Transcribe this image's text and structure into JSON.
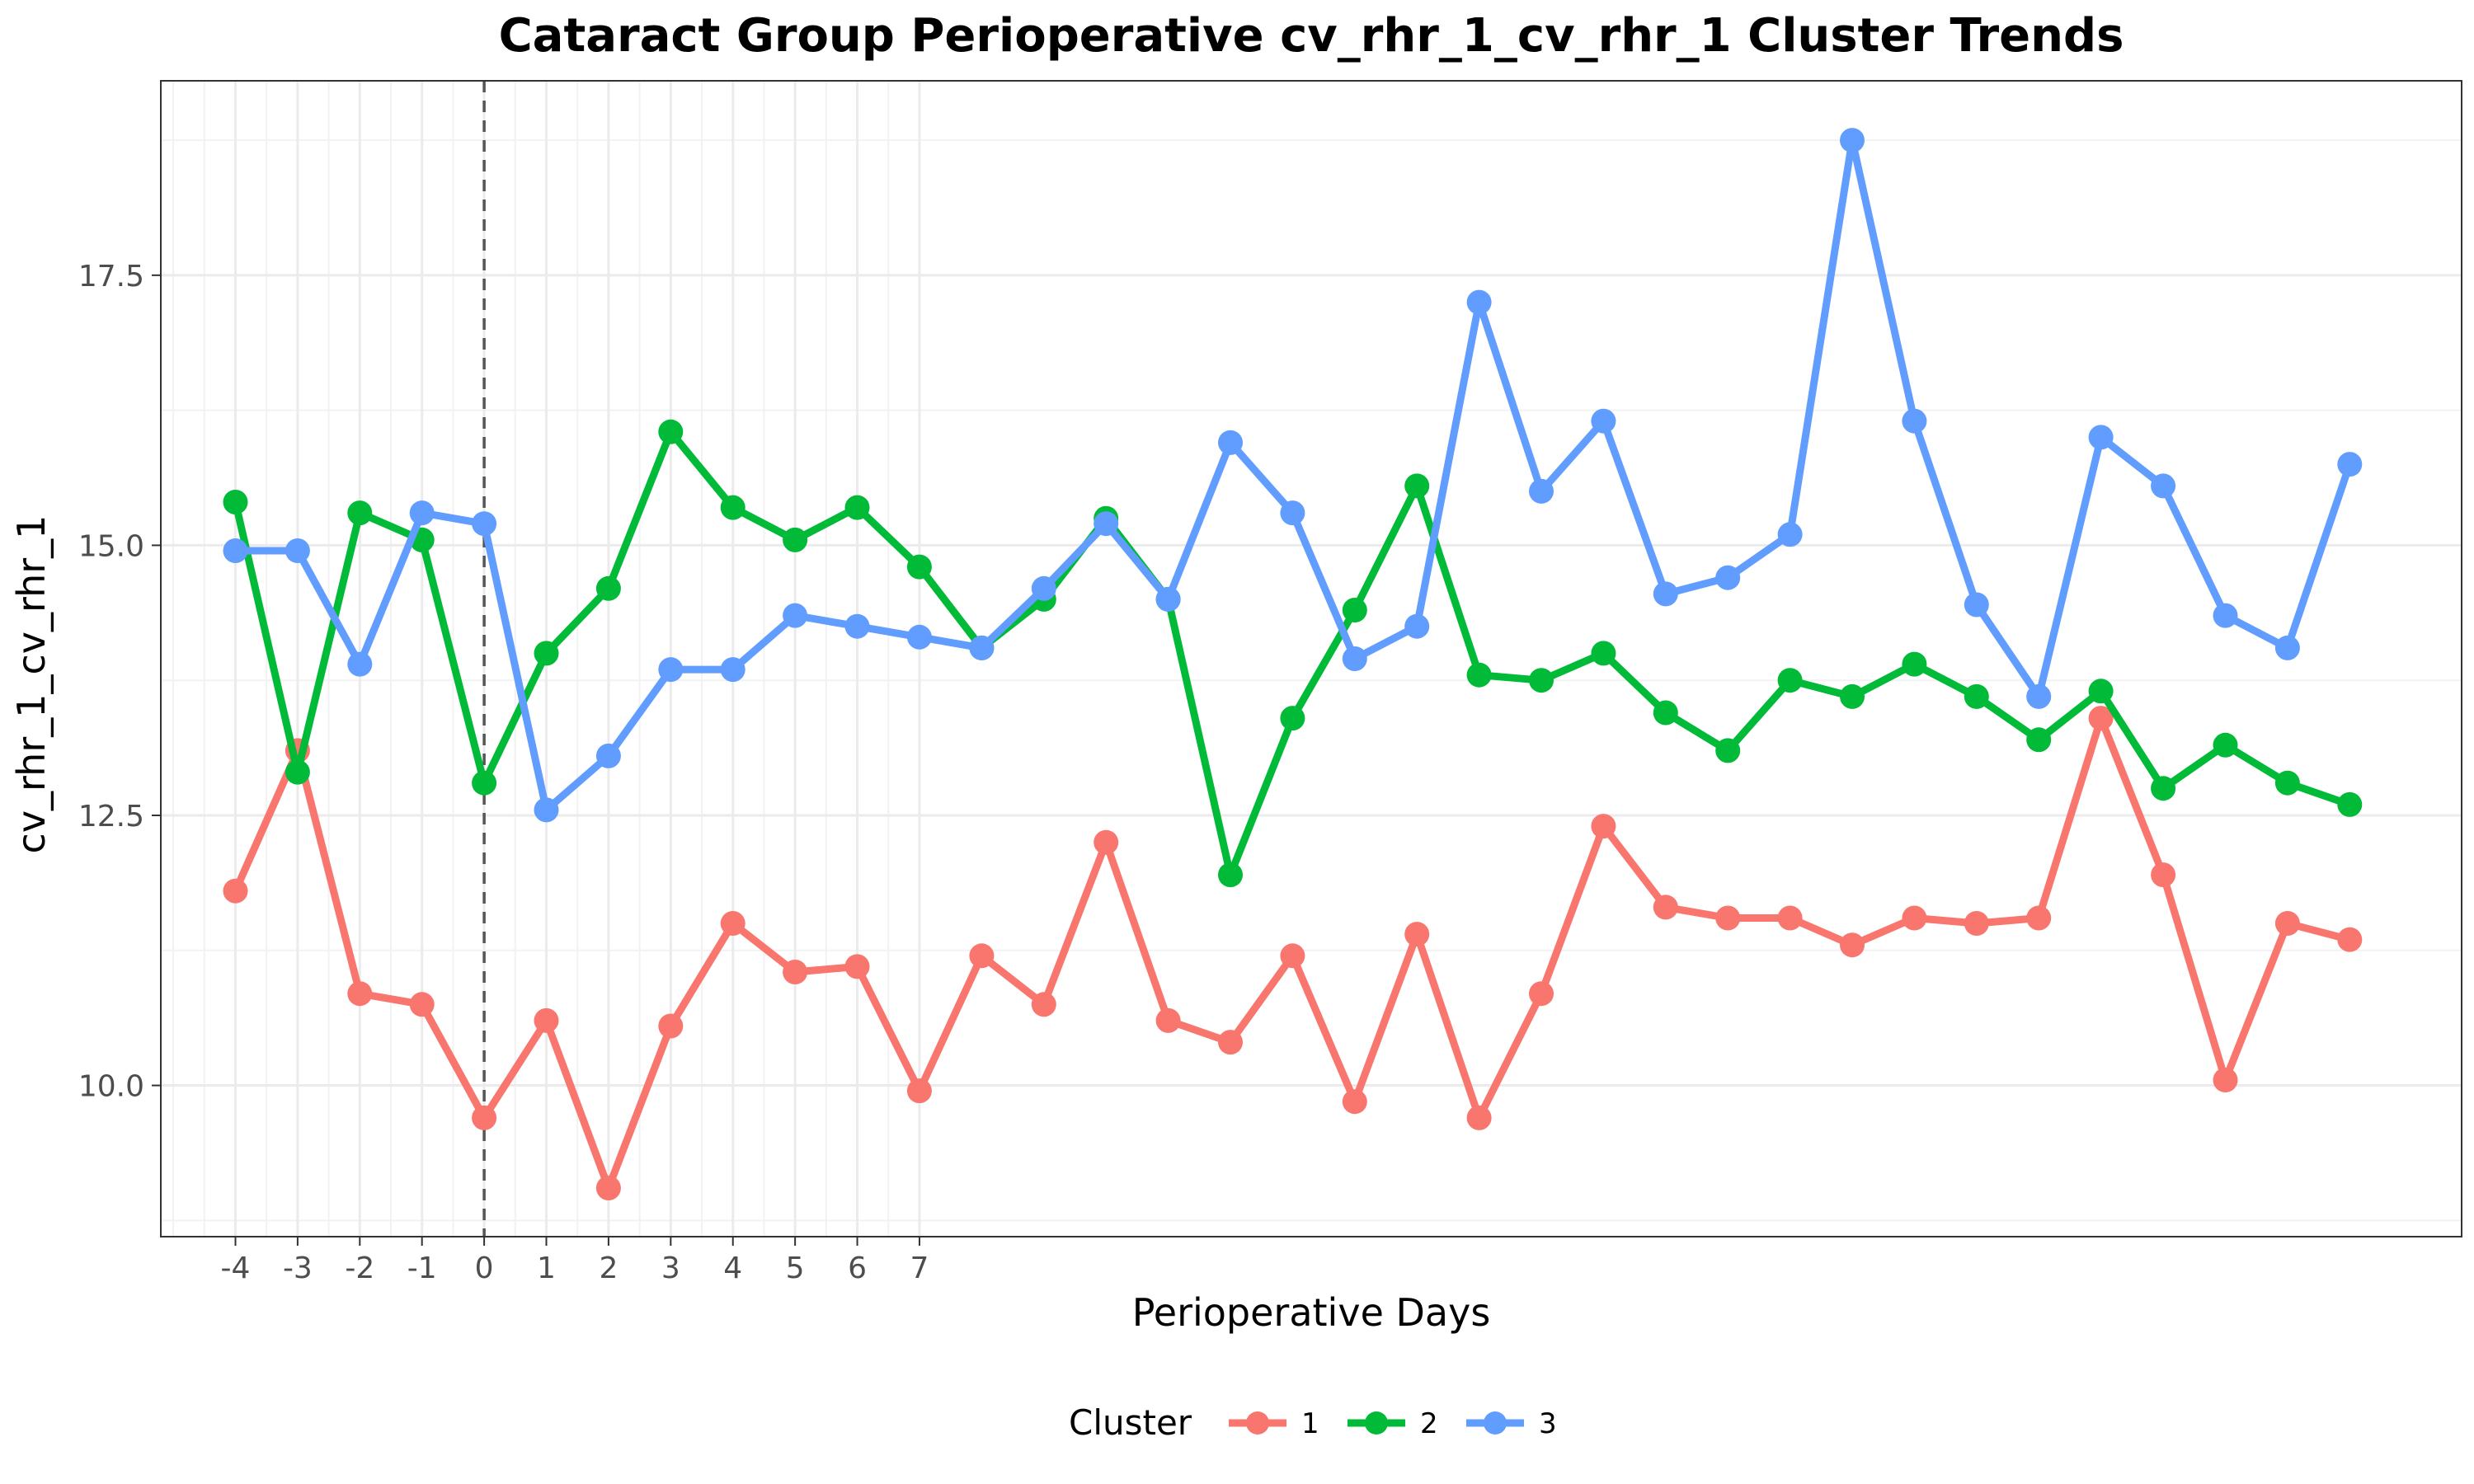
{
  "chart_data": {
    "type": "line",
    "title": "Cataract Group Perioperative cv_rhr_1_cv_rhr_1 Cluster Trends",
    "xlabel": "Perioperative Days",
    "ylabel": "cv_rhr_1_cv_rhr_1",
    "xlim": [
      -5.2,
      31.8
    ],
    "ylim": [
      8.6,
      19.3
    ],
    "x_tick_values": [
      -4,
      -3,
      -2,
      -1,
      0,
      1,
      2,
      3,
      4,
      5,
      6,
      7
    ],
    "x_tick_labels": [
      "-4",
      "-3",
      "-2",
      "-1",
      "0",
      "1",
      "2",
      "3",
      "4",
      "5",
      "6",
      "7"
    ],
    "y_tick_values": [
      10.0,
      12.5,
      15.0,
      17.5
    ],
    "y_tick_labels": [
      "10.0",
      "12.5",
      "15.0",
      "17.5"
    ],
    "reference_line_x": 0,
    "grid": true,
    "legend_position": "bottom",
    "legend_title": "Cluster",
    "x": [
      -4,
      -3,
      -2,
      -1,
      0,
      1,
      2,
      3,
      4,
      5,
      6,
      7,
      8,
      9,
      10,
      11,
      12,
      13,
      14,
      15,
      16,
      17,
      18,
      19,
      20,
      21,
      22,
      23,
      24,
      25,
      26,
      27,
      28,
      29,
      30,
      31
    ],
    "series": [
      {
        "name": "1",
        "color": "#F8766D",
        "values": [
          11.8,
          13.1,
          10.85,
          10.75,
          9.7,
          10.6,
          9.05,
          10.55,
          11.5,
          11.05,
          11.1,
          9.95,
          11.2,
          10.75,
          12.25,
          10.6,
          10.4,
          11.2,
          9.85,
          11.4,
          9.7,
          10.85,
          12.4,
          11.65,
          11.55,
          11.55,
          11.3,
          11.55,
          11.5,
          11.55,
          13.4,
          11.95,
          10.05,
          11.5,
          11.35,
          null
        ]
      },
      {
        "name": "2",
        "color": "#00BA38",
        "values": [
          15.4,
          12.9,
          15.3,
          15.05,
          12.8,
          14.0,
          14.6,
          16.05,
          15.35,
          15.05,
          15.35,
          14.8,
          14.05,
          14.5,
          15.25,
          14.5,
          11.95,
          13.4,
          14.4,
          15.55,
          13.8,
          13.75,
          14.0,
          13.45,
          13.1,
          13.75,
          13.6,
          13.9,
          13.6,
          13.2,
          13.65,
          12.75,
          13.15,
          12.8,
          12.6,
          null
        ]
      },
      {
        "name": "3",
        "color": "#619CFF",
        "values": [
          14.95,
          14.95,
          13.9,
          15.3,
          15.2,
          12.55,
          13.05,
          13.85,
          13.85,
          14.35,
          14.25,
          14.15,
          14.05,
          14.6,
          15.2,
          14.5,
          15.95,
          15.3,
          13.95,
          14.25,
          17.25,
          15.5,
          16.15,
          14.55,
          14.7,
          15.1,
          18.75,
          16.15,
          14.45,
          13.6,
          16.0,
          15.55,
          14.35,
          14.05,
          15.75,
          null
        ]
      }
    ]
  }
}
